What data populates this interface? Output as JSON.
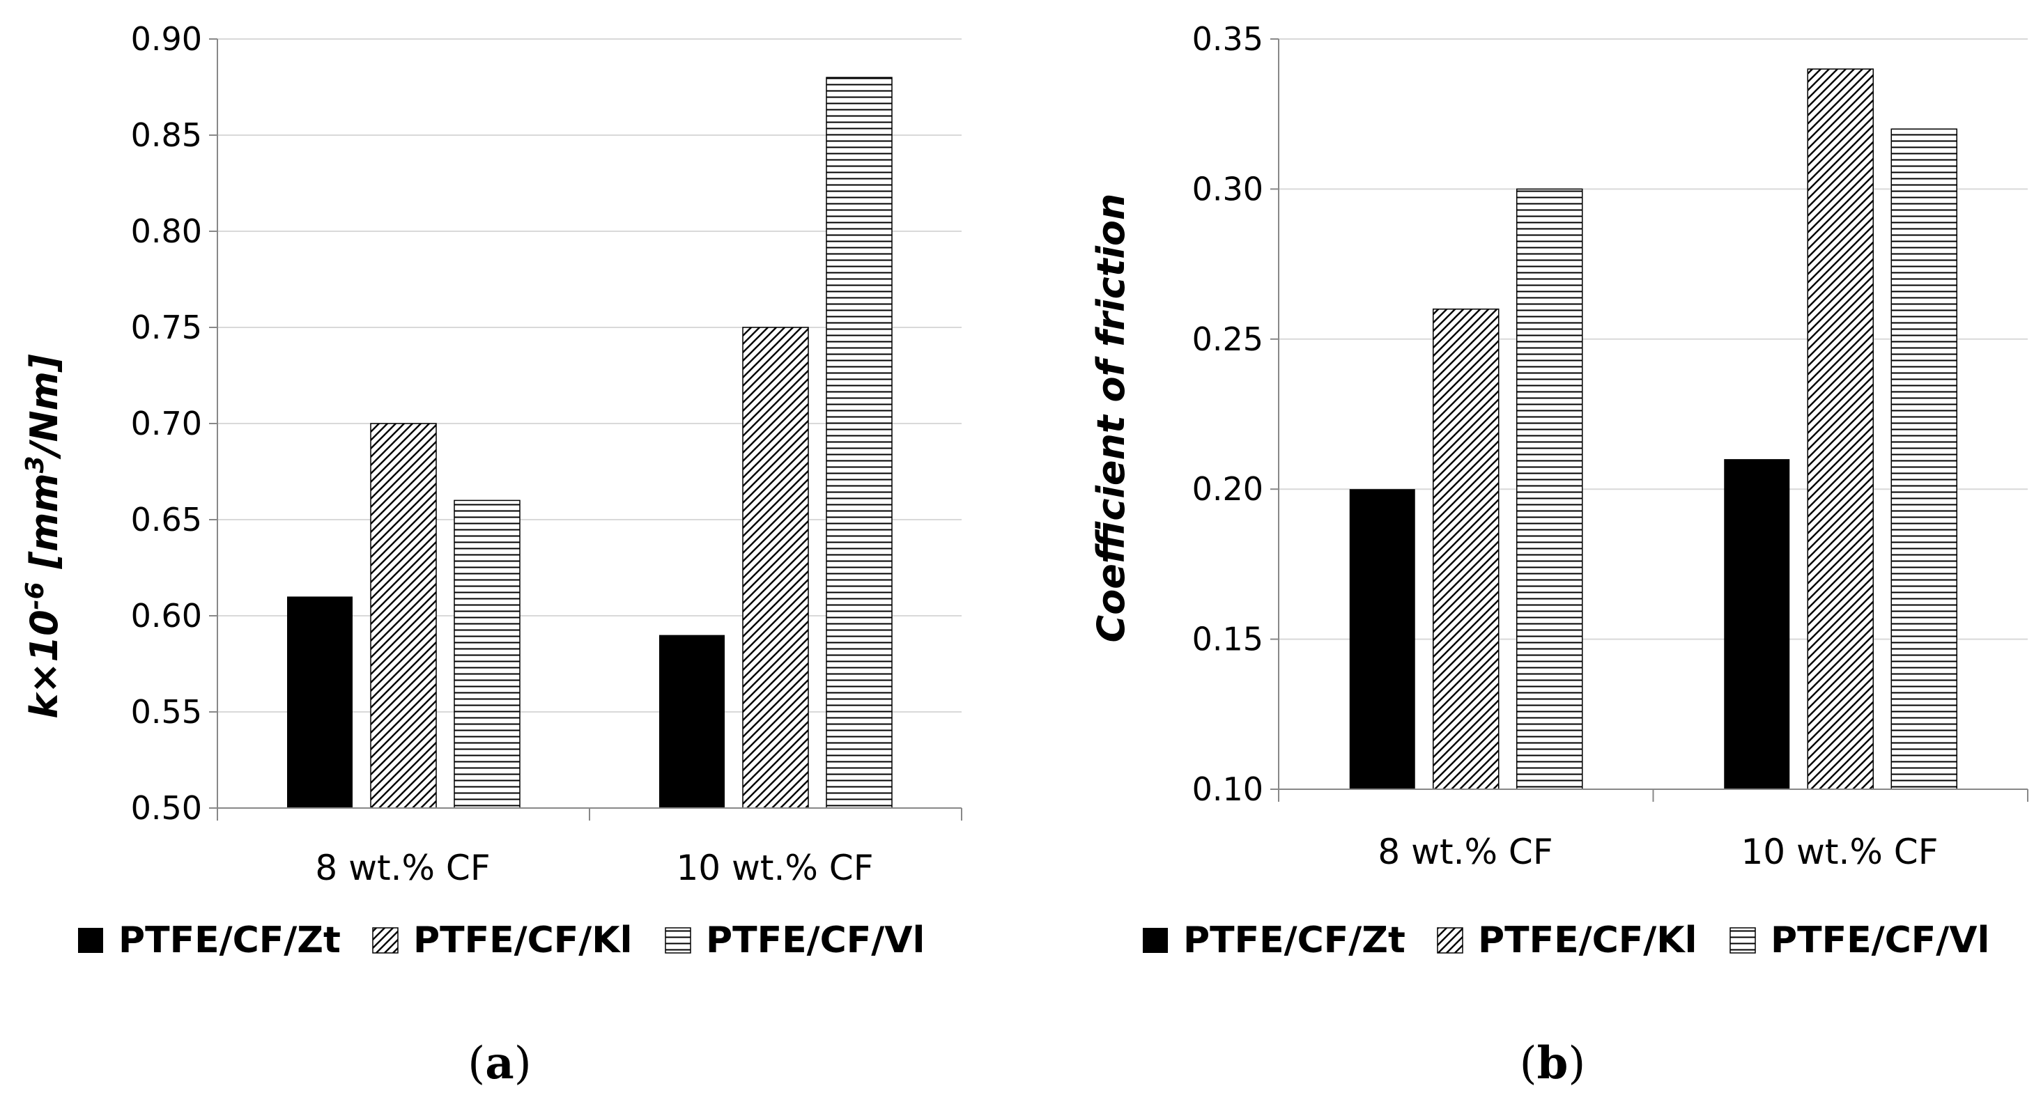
{
  "chart_data": [
    {
      "type": "bar",
      "panel_label": "a",
      "categories": [
        "8 wt.% CF",
        "10 wt.% CF"
      ],
      "series": [
        {
          "name": "PTFE/CF/Zt",
          "values": [
            0.61,
            0.59
          ],
          "pattern": "solid"
        },
        {
          "name": "PTFE/CF/Kl",
          "values": [
            0.7,
            0.75
          ],
          "pattern": "diagonal"
        },
        {
          "name": "PTFE/CF/Vl",
          "values": [
            0.66,
            0.88
          ],
          "pattern": "horizontal"
        }
      ],
      "ylabel": {
        "main": "k×10",
        "sup_exp": "-6",
        "unit_a": " [mm",
        "sup_unit": "3",
        "unit_b": "/Nm]"
      },
      "xlabel": "",
      "ylim": [
        0.5,
        0.9
      ],
      "yticks": [
        "0.50",
        "0.55",
        "0.60",
        "0.65",
        "0.70",
        "0.75",
        "0.80",
        "0.85",
        "0.90"
      ],
      "grid": true,
      "legend_position": "bottom"
    },
    {
      "type": "bar",
      "panel_label": "b",
      "categories": [
        "8 wt.% CF",
        "10 wt.% CF"
      ],
      "series": [
        {
          "name": "PTFE/CF/Zt",
          "values": [
            0.2,
            0.21
          ],
          "pattern": "solid"
        },
        {
          "name": "PTFE/CF/Kl",
          "values": [
            0.26,
            0.34
          ],
          "pattern": "diagonal"
        },
        {
          "name": "PTFE/CF/Vl",
          "values": [
            0.3,
            0.32
          ],
          "pattern": "horizontal"
        }
      ],
      "ylabel": "Coefficient of friction",
      "xlabel": "",
      "ylim": [
        0.1,
        0.35
      ],
      "yticks": [
        "0.10",
        "0.15",
        "0.20",
        "0.25",
        "0.30",
        "0.35"
      ],
      "grid": true,
      "legend_position": "bottom"
    }
  ],
  "colors": {
    "axis": "#888888",
    "grid": "#d9d9d9",
    "bar": "#000000"
  }
}
